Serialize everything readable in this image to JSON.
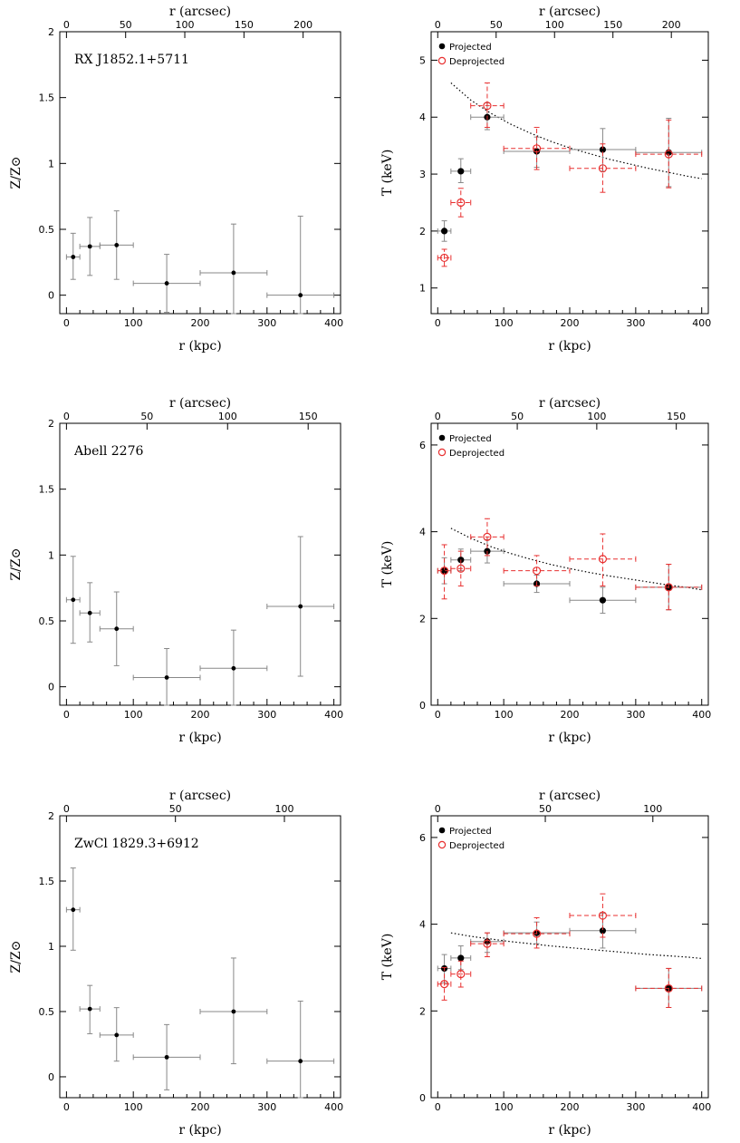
{
  "chart_data": [
    {
      "type": "scatter",
      "cluster": "RX J1852.1+5711",
      "quantity": "Z",
      "xlabel": "r (kpc)",
      "x2label": "r (arcsec)",
      "ylabel": "Z/Z⊙",
      "xlim": [
        -10,
        410
      ],
      "ylim": [
        -0.14,
        2.0
      ],
      "xticks": [
        "0",
        "100",
        "200",
        "300",
        "400"
      ],
      "x2ticks": [
        {
          "label": "50",
          "kpc": 88.5
        },
        {
          "label": "100",
          "kpc": 177
        },
        {
          "label": "150",
          "kpc": 265.5
        },
        {
          "label": "200",
          "kpc": 354
        }
      ],
      "yticks": [
        "0",
        "0.5",
        "1",
        "1.5",
        "2"
      ],
      "series": [
        {
          "marker": "dot",
          "color": "#000000",
          "errcolor": "#888888",
          "points": [
            {
              "x": 10,
              "xerr": 10,
              "y": 0.29,
              "ylo": 0.12,
              "yhi": 0.47
            },
            {
              "x": 35,
              "xerr": 15,
              "y": 0.37,
              "ylo": 0.15,
              "yhi": 0.59
            },
            {
              "x": 75,
              "xerr": 25,
              "y": 0.38,
              "ylo": 0.12,
              "yhi": 0.64
            },
            {
              "x": 150,
              "xerr": 50,
              "y": 0.09,
              "ylo": -0.13,
              "yhi": 0.31
            },
            {
              "x": 250,
              "xerr": 50,
              "y": 0.17,
              "ylo": -0.14,
              "yhi": 0.54
            },
            {
              "x": 350,
              "xerr": 50,
              "y": 0.0,
              "ylo": -0.14,
              "yhi": 0.6
            }
          ]
        }
      ]
    },
    {
      "type": "scatter",
      "cluster": "RX J1852.1+5711",
      "quantity": "T",
      "xlabel": "r (kpc)",
      "x2label": "r (arcsec)",
      "ylabel": "T (keV)",
      "xlim": [
        -10,
        410
      ],
      "ylim": [
        0.55,
        5.5
      ],
      "xticks": [
        "0",
        "100",
        "200",
        "300",
        "400"
      ],
      "x2ticks": [
        {
          "label": "50",
          "kpc": 88.5
        },
        {
          "label": "100",
          "kpc": 177
        },
        {
          "label": "150",
          "kpc": 265.5
        },
        {
          "label": "200",
          "kpc": 354
        }
      ],
      "yticks": [
        "1",
        "2",
        "3",
        "4",
        "5"
      ],
      "legend": [
        "Projected",
        "Deprojected"
      ],
      "series": [
        {
          "name": "Projected",
          "marker": "dot",
          "color": "#000000",
          "errcolor": "#888888",
          "points": [
            {
              "x": 10,
              "xerr": 10,
              "y": 2.0,
              "ylo": 1.82,
              "yhi": 2.18
            },
            {
              "x": 35,
              "xerr": 15,
              "y": 3.05,
              "ylo": 2.85,
              "yhi": 3.27
            },
            {
              "x": 75,
              "xerr": 25,
              "y": 4.0,
              "ylo": 3.78,
              "yhi": 4.25
            },
            {
              "x": 150,
              "xerr": 50,
              "y": 3.4,
              "ylo": 3.12,
              "yhi": 3.65
            },
            {
              "x": 250,
              "xerr": 50,
              "y": 3.43,
              "ylo": 3.05,
              "yhi": 3.8
            },
            {
              "x": 350,
              "xerr": 50,
              "y": 3.38,
              "ylo": 2.78,
              "yhi": 3.98
            }
          ]
        },
        {
          "name": "Deprojected",
          "marker": "circle",
          "color": "#e83030",
          "errcolor": "#e83030",
          "points": [
            {
              "x": 10,
              "xerr": 10,
              "y": 1.53,
              "ylo": 1.38,
              "yhi": 1.68
            },
            {
              "x": 35,
              "xerr": 15,
              "y": 2.5,
              "ylo": 2.25,
              "yhi": 2.75
            },
            {
              "x": 75,
              "xerr": 25,
              "y": 4.2,
              "ylo": 3.82,
              "yhi": 4.6
            },
            {
              "x": 150,
              "xerr": 50,
              "y": 3.45,
              "ylo": 3.08,
              "yhi": 3.82
            },
            {
              "x": 250,
              "xerr": 50,
              "y": 3.1,
              "ylo": 2.68,
              "yhi": 3.53
            },
            {
              "x": 350,
              "xerr": 50,
              "y": 3.35,
              "ylo": 2.76,
              "yhi": 3.95
            }
          ]
        }
      ],
      "curve": {
        "style": "dotted",
        "x": [
          20,
          50,
          80,
          110,
          140,
          170,
          200,
          230,
          260,
          290,
          320,
          350,
          380,
          400
        ],
        "y": [
          4.6,
          4.3,
          4.07,
          3.88,
          3.72,
          3.58,
          3.46,
          3.36,
          3.26,
          3.18,
          3.1,
          3.03,
          2.96,
          2.92
        ]
      }
    },
    {
      "type": "scatter",
      "cluster": "Abell 2276",
      "quantity": "Z",
      "xlabel": "r (kpc)",
      "x2label": "r (arcsec)",
      "ylabel": "Z/Z⊙",
      "xlim": [
        -10,
        410
      ],
      "ylim": [
        -0.14,
        2.0
      ],
      "xticks": [
        "0",
        "100",
        "200",
        "300",
        "400"
      ],
      "x2ticks": [
        {
          "label": "50",
          "kpc": 120.5
        },
        {
          "label": "100",
          "kpc": 241
        },
        {
          "label": "150",
          "kpc": 361.5
        }
      ],
      "yticks": [
        "0",
        "0.5",
        "1",
        "1.5",
        "2"
      ],
      "series": [
        {
          "marker": "dot",
          "color": "#000000",
          "errcolor": "#888888",
          "points": [
            {
              "x": 10,
              "xerr": 10,
              "y": 0.66,
              "ylo": 0.33,
              "yhi": 0.99
            },
            {
              "x": 35,
              "xerr": 15,
              "y": 0.56,
              "ylo": 0.34,
              "yhi": 0.79
            },
            {
              "x": 75,
              "xerr": 25,
              "y": 0.44,
              "ylo": 0.16,
              "yhi": 0.72
            },
            {
              "x": 150,
              "xerr": 50,
              "y": 0.07,
              "ylo": -0.14,
              "yhi": 0.29
            },
            {
              "x": 250,
              "xerr": 50,
              "y": 0.14,
              "ylo": -0.14,
              "yhi": 0.43
            },
            {
              "x": 350,
              "xerr": 50,
              "y": 0.61,
              "ylo": 0.08,
              "yhi": 1.14
            }
          ]
        }
      ]
    },
    {
      "type": "scatter",
      "cluster": "Abell 2276",
      "quantity": "T",
      "xlabel": "r (kpc)",
      "x2label": "r (arcsec)",
      "ylabel": "T (keV)",
      "xlim": [
        -10,
        410
      ],
      "ylim": [
        0,
        6.5
      ],
      "xticks": [
        "0",
        "100",
        "200",
        "300",
        "400"
      ],
      "x2ticks": [
        {
          "label": "50",
          "kpc": 120.5
        },
        {
          "label": "100",
          "kpc": 241
        },
        {
          "label": "150",
          "kpc": 361.5
        }
      ],
      "yticks": [
        "0",
        "2",
        "4",
        "6"
      ],
      "legend": [
        "Projected",
        "Deprojected"
      ],
      "series": [
        {
          "name": "Projected",
          "marker": "dot",
          "color": "#000000",
          "errcolor": "#888888",
          "points": [
            {
              "x": 10,
              "xerr": 10,
              "y": 3.1,
              "ylo": 2.8,
              "yhi": 3.4
            },
            {
              "x": 35,
              "xerr": 15,
              "y": 3.35,
              "ylo": 3.1,
              "yhi": 3.6
            },
            {
              "x": 75,
              "xerr": 25,
              "y": 3.55,
              "ylo": 3.28,
              "yhi": 3.82
            },
            {
              "x": 150,
              "xerr": 50,
              "y": 2.8,
              "ylo": 2.6,
              "yhi": 3.0
            },
            {
              "x": 250,
              "xerr": 50,
              "y": 2.42,
              "ylo": 2.12,
              "yhi": 2.72
            },
            {
              "x": 350,
              "xerr": 50,
              "y": 2.72,
              "ylo": 2.2,
              "yhi": 3.25
            }
          ]
        },
        {
          "name": "Deprojected",
          "marker": "circle",
          "color": "#e83030",
          "errcolor": "#e83030",
          "points": [
            {
              "x": 10,
              "xerr": 10,
              "y": 3.1,
              "ylo": 2.45,
              "yhi": 3.7
            },
            {
              "x": 35,
              "xerr": 15,
              "y": 3.15,
              "ylo": 2.75,
              "yhi": 3.55
            },
            {
              "x": 75,
              "xerr": 25,
              "y": 3.88,
              "ylo": 3.45,
              "yhi": 4.3
            },
            {
              "x": 150,
              "xerr": 50,
              "y": 3.1,
              "ylo": 2.75,
              "yhi": 3.45
            },
            {
              "x": 250,
              "xerr": 50,
              "y": 3.37,
              "ylo": 2.75,
              "yhi": 3.95
            },
            {
              "x": 350,
              "xerr": 50,
              "y": 2.72,
              "ylo": 2.2,
              "yhi": 3.25
            }
          ]
        }
      ],
      "curve": {
        "style": "dotted",
        "x": [
          20,
          50,
          80,
          110,
          140,
          170,
          200,
          230,
          260,
          290,
          320,
          350,
          380,
          400
        ],
        "y": [
          4.08,
          3.85,
          3.66,
          3.5,
          3.37,
          3.25,
          3.15,
          3.06,
          2.98,
          2.91,
          2.84,
          2.77,
          2.71,
          2.66
        ]
      }
    },
    {
      "type": "scatter",
      "cluster": "ZwCl 1829.3+6912",
      "quantity": "Z",
      "xlabel": "r (kpc)",
      "x2label": "r (arcsec)",
      "ylabel": "Z/Z⊙",
      "xlim": [
        -10,
        410
      ],
      "ylim": [
        -0.16,
        2.0
      ],
      "xticks": [
        "0",
        "100",
        "200",
        "300",
        "400"
      ],
      "x2ticks": [
        {
          "label": "50",
          "kpc": 163
        },
        {
          "label": "100",
          "kpc": 326
        }
      ],
      "yticks": [
        "0",
        "0.5",
        "1",
        "1.5",
        "2"
      ],
      "series": [
        {
          "marker": "dot",
          "color": "#000000",
          "errcolor": "#888888",
          "points": [
            {
              "x": 10,
              "xerr": 10,
              "y": 1.28,
              "ylo": 0.97,
              "yhi": 1.6
            },
            {
              "x": 35,
              "xerr": 15,
              "y": 0.52,
              "ylo": 0.33,
              "yhi": 0.7
            },
            {
              "x": 75,
              "xerr": 25,
              "y": 0.32,
              "ylo": 0.12,
              "yhi": 0.53
            },
            {
              "x": 150,
              "xerr": 50,
              "y": 0.15,
              "ylo": -0.1,
              "yhi": 0.4
            },
            {
              "x": 250,
              "xerr": 50,
              "y": 0.5,
              "ylo": 0.1,
              "yhi": 0.91
            },
            {
              "x": 350,
              "xerr": 50,
              "y": 0.12,
              "ylo": -0.16,
              "yhi": 0.58
            }
          ]
        }
      ]
    },
    {
      "type": "scatter",
      "cluster": "ZwCl 1829.3+6912",
      "quantity": "T",
      "xlabel": "r (kpc)",
      "x2label": "r (arcsec)",
      "ylabel": "T (keV)",
      "xlim": [
        -10,
        410
      ],
      "ylim": [
        0,
        6.5
      ],
      "xticks": [
        "0",
        "100",
        "200",
        "300",
        "400"
      ],
      "x2ticks": [
        {
          "label": "50",
          "kpc": 163
        },
        {
          "label": "100",
          "kpc": 326
        }
      ],
      "yticks": [
        "0",
        "2",
        "4",
        "6"
      ],
      "legend": [
        "Projected",
        "Deprojected"
      ],
      "series": [
        {
          "name": "Projected",
          "marker": "dot",
          "color": "#000000",
          "errcolor": "#888888",
          "points": [
            {
              "x": 10,
              "xerr": 10,
              "y": 2.98,
              "ylo": 2.65,
              "yhi": 3.3
            },
            {
              "x": 35,
              "xerr": 15,
              "y": 3.22,
              "ylo": 2.95,
              "yhi": 3.5
            },
            {
              "x": 75,
              "xerr": 25,
              "y": 3.6,
              "ylo": 3.35,
              "yhi": 3.8
            },
            {
              "x": 150,
              "xerr": 50,
              "y": 3.8,
              "ylo": 3.55,
              "yhi": 4.05
            },
            {
              "x": 250,
              "xerr": 50,
              "y": 3.85,
              "ylo": 3.45,
              "yhi": 4.25
            },
            {
              "x": 350,
              "xerr": 50,
              "y": 2.52,
              "ylo": 2.08,
              "yhi": 2.98
            }
          ]
        },
        {
          "name": "Deprojected",
          "marker": "circle",
          "color": "#e83030",
          "errcolor": "#e83030",
          "points": [
            {
              "x": 10,
              "xerr": 10,
              "y": 2.62,
              "ylo": 2.25,
              "yhi": 3.0
            },
            {
              "x": 35,
              "xerr": 15,
              "y": 2.85,
              "ylo": 2.55,
              "yhi": 3.15
            },
            {
              "x": 75,
              "xerr": 25,
              "y": 3.55,
              "ylo": 3.25,
              "yhi": 3.8
            },
            {
              "x": 150,
              "xerr": 50,
              "y": 3.78,
              "ylo": 3.45,
              "yhi": 4.15
            },
            {
              "x": 250,
              "xerr": 50,
              "y": 4.2,
              "ylo": 3.7,
              "yhi": 4.7
            },
            {
              "x": 350,
              "xerr": 50,
              "y": 2.52,
              "ylo": 2.08,
              "yhi": 2.98
            }
          ]
        }
      ],
      "curve": {
        "style": "dotted",
        "x": [
          20,
          50,
          80,
          110,
          140,
          170,
          200,
          230,
          260,
          290,
          320,
          350,
          380,
          400
        ],
        "y": [
          3.8,
          3.72,
          3.66,
          3.6,
          3.55,
          3.5,
          3.46,
          3.42,
          3.38,
          3.34,
          3.3,
          3.27,
          3.24,
          3.21
        ]
      }
    }
  ]
}
